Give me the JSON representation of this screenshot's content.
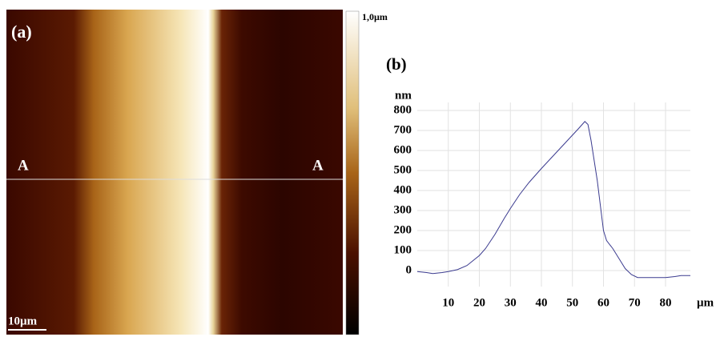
{
  "image_panel": {
    "label": "(a)",
    "marker_left": "A",
    "marker_right": "A",
    "scale_bar": "10µm",
    "color_scale_max": "1,0µm"
  },
  "chart_data": {
    "type": "line",
    "panel_label": "(b)",
    "y_label": "nm",
    "x_label": "µm",
    "color": "#3b3b8f",
    "x": [
      0,
      3,
      5,
      8,
      10,
      13,
      16,
      18,
      20,
      22,
      25,
      28,
      30,
      33,
      36,
      40,
      43,
      46,
      49,
      52,
      54,
      55,
      56,
      58,
      60,
      61,
      63,
      65,
      67,
      69,
      71,
      75,
      80,
      83,
      85,
      88
    ],
    "values": [
      -5,
      -10,
      -15,
      -10,
      -5,
      5,
      25,
      50,
      75,
      110,
      180,
      260,
      310,
      380,
      440,
      510,
      560,
      610,
      660,
      710,
      745,
      730,
      650,
      450,
      200,
      150,
      110,
      60,
      10,
      -20,
      -35,
      -35,
      -35,
      -30,
      -25,
      -25
    ],
    "xlim": [
      0,
      88
    ],
    "ylim": [
      -80,
      840
    ],
    "xticks": [
      10,
      20,
      30,
      40,
      50,
      60,
      70,
      80
    ],
    "yticks": [
      0,
      100,
      200,
      300,
      400,
      500,
      600,
      700,
      800
    ],
    "grid": true
  }
}
